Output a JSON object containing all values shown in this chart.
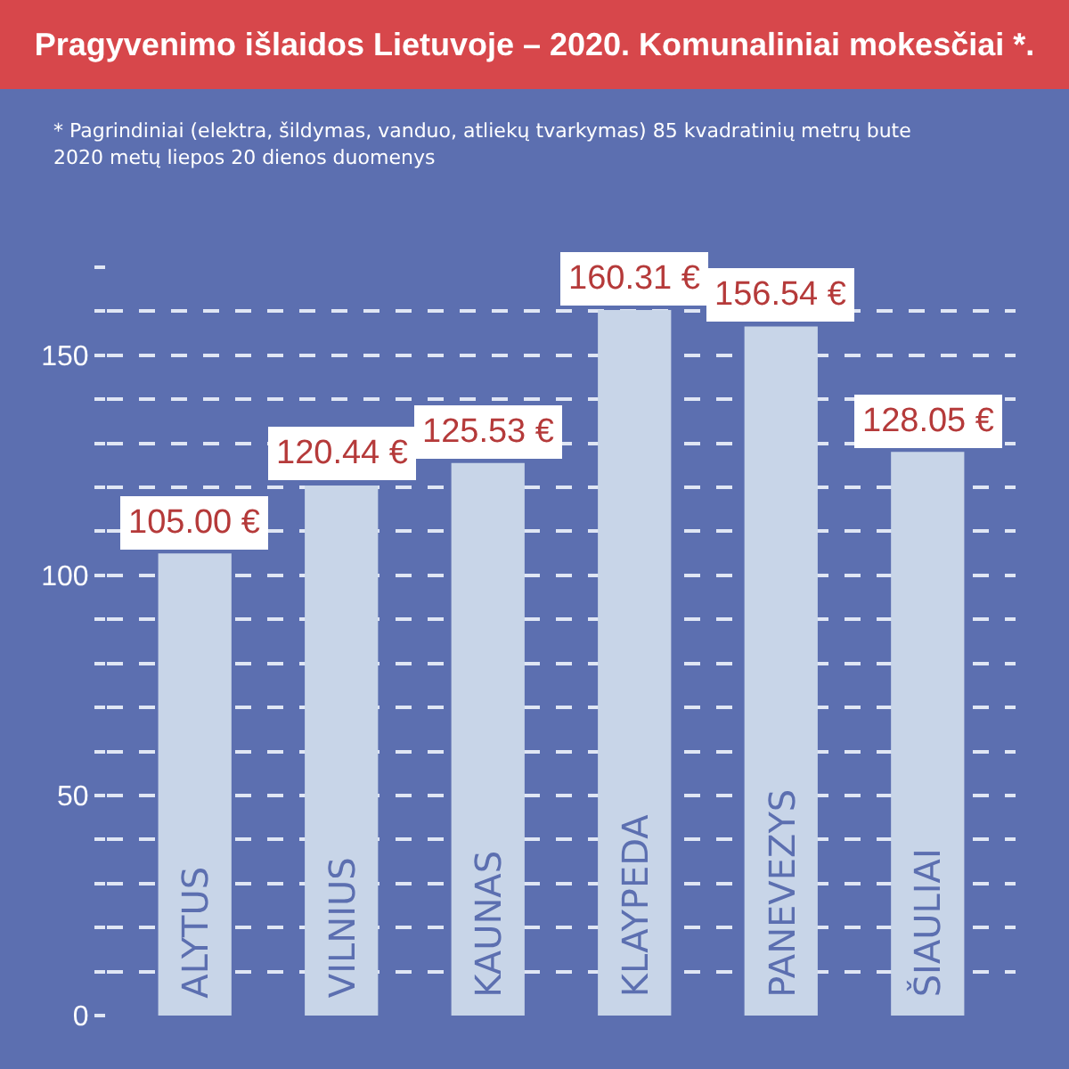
{
  "chart_data": {
    "type": "bar",
    "title": "Pragyvenimo išlaidos Lietuvoje – 2020. Komunaliniai mokesčiai *.",
    "annotations": [
      "* Pagrindiniai (elektra, šildymas, vanduo, atliekų tvarkymas) 85 kvadratinių metrų bute",
      "2020 metų liepos 20 dienos duomenys"
    ],
    "categories": [
      "ALYTUS",
      "VILNIUS",
      "KAUNAS",
      "KLAYPEDA",
      "PANEVEZYS",
      "ŠIAULIAI"
    ],
    "values": [
      105.0,
      120.44,
      125.53,
      160.31,
      156.54,
      128.05
    ],
    "value_labels": [
      "105.00 €",
      "120.44 €",
      "125.53 €",
      "160.31 €",
      "156.54 €",
      "128.05 €"
    ],
    "color": "#c8d5e8",
    "ylim": [
      0,
      170
    ],
    "yticks": [
      0,
      {
        "value": 10,
        "label": null
      },
      {
        "value": 20,
        "label": null
      },
      {
        "value": 30,
        "label": null
      },
      {
        "value": 40,
        "label": null
      },
      50,
      {
        "value": 60,
        "label": null
      },
      {
        "value": 70,
        "label": null
      },
      {
        "value": 80,
        "label": null
      },
      {
        "value": 90,
        "label": null
      },
      100,
      {
        "value": 110,
        "label": null
      },
      {
        "value": 120,
        "label": null
      },
      {
        "value": 130,
        "label": null
      },
      {
        "value": 140,
        "label": null
      },
      150,
      {
        "value": 160,
        "label": null
      },
      {
        "value": 170,
        "label": null
      }
    ],
    "grid": "y",
    "legend": false
  }
}
